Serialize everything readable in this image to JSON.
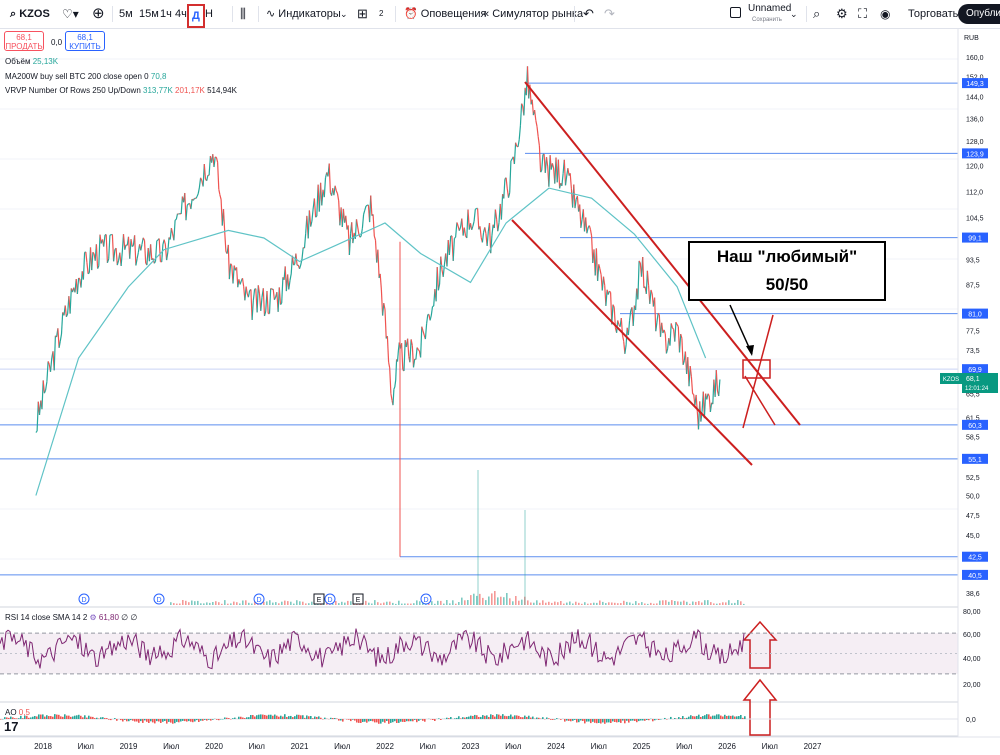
{
  "toolbar": {
    "symbol": "KZOS",
    "intervals": [
      "5м",
      "15м",
      "1ч",
      "4ч",
      "Д",
      "Н"
    ],
    "active_interval": "Д",
    "indicators_label": "Индикаторы",
    "layouts_count": "2",
    "alerts_label": "Оповещения",
    "replay_label": "Симулятор рынка",
    "layout_name": "Unnamed",
    "layout_status": "Сохранить",
    "trade_label": "Торговать",
    "publish_label": "Опубликовать"
  },
  "trade_buttons": {
    "sell_price": "68,1",
    "sell_label": "ПРОДАТЬ",
    "spread": "0,0",
    "buy_price": "68,1",
    "buy_label": "КУПИТЬ"
  },
  "legend": {
    "volume_label": "Объём",
    "volume_value": "25,13K",
    "ma_label": "MA200W buy sell BTC 200 close open 0",
    "ma_value": "70,8",
    "vrvp_label": "VRVP Number Of Rows 250 Up/Down",
    "vrvp_up": "313,77K",
    "vrvp_down": "201,17K",
    "vrvp_total": "514,94K",
    "rsi_label": "RSI 14 close SMA 14 2",
    "rsi_value": "61,80",
    "rsi_extra": "∅ ∅",
    "ao_label": "AO",
    "ao_value": "0,5"
  },
  "price_axis": {
    "currency": "RUB",
    "ticks": [
      "160,0",
      "152,0",
      "144,0",
      "136,0",
      "128,0",
      "120,0",
      "112,0",
      "104,5",
      "99,1",
      "93,5",
      "87,5",
      "81,0",
      "77,5",
      "73,5",
      "69,9",
      "65,5",
      "61,5",
      "58,5",
      "55,1",
      "52,5",
      "50,0",
      "47,5",
      "45,0",
      "42,5",
      "40,5",
      "38,6"
    ],
    "levels": [
      {
        "price": 149.3,
        "label": "149,3"
      },
      {
        "price": 123.9,
        "label": "123,9"
      },
      {
        "price": 99.1,
        "label": "99,1"
      },
      {
        "price": 81.0,
        "label": "81,0"
      },
      {
        "price": 69.9,
        "label": "69,9"
      },
      {
        "price": 60.3,
        "label": "60,3"
      },
      {
        "price": 55.1,
        "label": "55,1"
      },
      {
        "price": 42.5,
        "label": "42,5"
      },
      {
        "price": 40.5,
        "label": "40,5"
      }
    ],
    "current": {
      "symbol": "KZOS",
      "price": "68,1",
      "countdown": "12:01:24"
    }
  },
  "rsi_axis": {
    "ticks": [
      "80,00",
      "60,00",
      "40,00",
      "20,00"
    ]
  },
  "ao_axis": {
    "ticks": [
      "0,0"
    ]
  },
  "time_axis": {
    "labels": [
      "2018",
      "Июл",
      "2019",
      "Июл",
      "2020",
      "Июл",
      "2021",
      "Июл",
      "2022",
      "Июл",
      "2023",
      "Июл",
      "2024",
      "Июл",
      "2025",
      "Июл",
      "2026",
      "Июл",
      "2027"
    ]
  },
  "events": [
    "D",
    "D",
    "D",
    "E",
    "D",
    "E",
    "D"
  ],
  "annotation": {
    "line1": "Наш \"любимый\"",
    "line2": "50/50"
  },
  "colors": {
    "up": "#26a69a",
    "down": "#ef5350",
    "ma": "#5fc3c6",
    "rsi": "#7e2672",
    "level": "#2962ff",
    "channel": "#cc1f1f",
    "accent": "#2962ff"
  },
  "chart_data": {
    "type": "line",
    "title": "KZOS",
    "x_range": [
      "2017-12",
      "2027-06"
    ],
    "ylim": [
      37,
      162
    ],
    "series": [
      {
        "name": "KZOS",
        "x": [
          "2017-12",
          "2018-06",
          "2018-09",
          "2019-01",
          "2019-06",
          "2020-01",
          "2020-03",
          "2020-06",
          "2020-10",
          "2021-01",
          "2021-05",
          "2021-08",
          "2021-11",
          "2022-02",
          "2022-03",
          "2022-06",
          "2022-09",
          "2023-01",
          "2023-04",
          "2023-07",
          "2023-09",
          "2023-11",
          "2024-02",
          "2024-05",
          "2024-08",
          "2024-11",
          "2025-01",
          "2025-04",
          "2025-06",
          "2025-09",
          "2025-12"
        ],
        "values": [
          60,
          90,
          96,
          96,
          95,
          125,
          93,
          83,
          85,
          95,
          118,
          98,
          108,
          65,
          72,
          74,
          92,
          105,
          99,
          120,
          150,
          119,
          118,
          102,
          85,
          75,
          92,
          75,
          78,
          62,
          68
        ]
      },
      {
        "name": "MA200W",
        "x": [
          "2017-12",
          "2018-06",
          "2019-01",
          "2019-06",
          "2020-03",
          "2020-08",
          "2021-01",
          "2021-06",
          "2022-01",
          "2022-06",
          "2023-01",
          "2023-06",
          "2023-12",
          "2024-06",
          "2024-12",
          "2025-06",
          "2025-10"
        ],
        "values": [
          50,
          72,
          87,
          96,
          101,
          99,
          93,
          97,
          103,
          95,
          88,
          103,
          113,
          110,
          100,
          87,
          72
        ]
      }
    ]
  }
}
